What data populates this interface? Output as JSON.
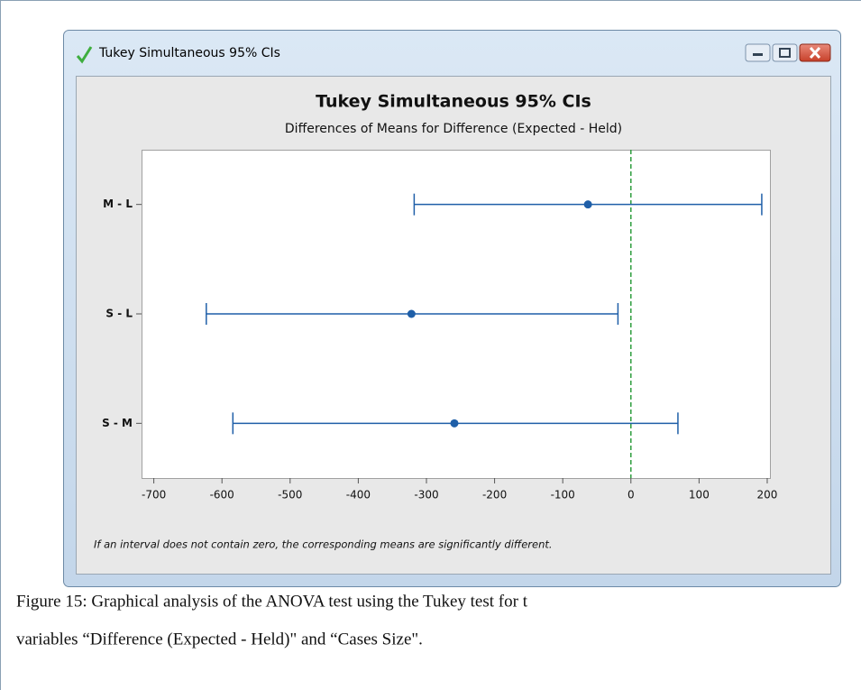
{
  "window": {
    "title": "Tukey Simultaneous 95% CIs"
  },
  "chart_data": {
    "type": "interval",
    "title": "Tukey Simultaneous 95% CIs",
    "subtitle": "Differences of Means for Difference (Expected - Held)",
    "categories": [
      "M - L",
      "S - L",
      "S - M"
    ],
    "values": [
      -63,
      -322,
      -259
    ],
    "lower": [
      -318,
      -623,
      -584
    ],
    "upper": [
      192,
      -19,
      69
    ],
    "color": "#1f5fa8",
    "reference_line": 0,
    "reference_color": "#2e9e3e",
    "xlim": [
      -718,
      204
    ],
    "xticks": [
      -700,
      -600,
      -500,
      -400,
      -300,
      -200,
      -100,
      0,
      100,
      200
    ],
    "footnote": "If an interval does not contain zero, the corresponding means are significantly different."
  },
  "caption": [
    "Figure 15: Graphical analysis of the ANOVA test using the Tukey test for t",
    "variables “Difference (Expected - Held)\" and “Cases Size\"."
  ]
}
